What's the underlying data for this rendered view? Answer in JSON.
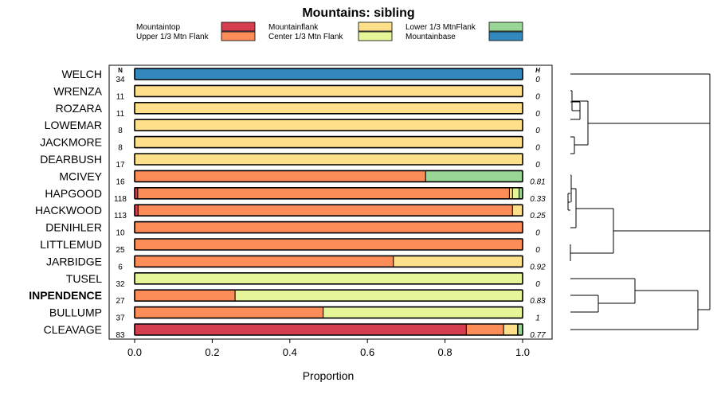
{
  "chart_data": {
    "type": "bar",
    "orientation": "horizontal",
    "stacked": true,
    "title": "Mountains: sibling",
    "xlabel": "Proportion",
    "ylabel": "",
    "xlim": [
      0,
      1
    ],
    "x_ticks": [
      0,
      0.2,
      0.4,
      0.6,
      0.8,
      1
    ],
    "x_tick_labels": [
      "0.0",
      "0.2",
      "0.4",
      "0.6",
      "0.8",
      "1.0"
    ],
    "n_header": "N",
    "h_header": "H",
    "legend": [
      {
        "name": "Mountaintop",
        "color": "#d53e4f"
      },
      {
        "name": "Upper 1/3 Mtn Flank",
        "color": "#fc8d59"
      },
      {
        "name": "Mountainflank",
        "color": "#fee08b"
      },
      {
        "name": "Center 1/3 Mtn Flank",
        "color": "#e6f598"
      },
      {
        "name": "Lower 1/3 MtnFlank",
        "color": "#99d594"
      },
      {
        "name": "Mountainbase",
        "color": "#3288bd"
      }
    ],
    "categories": [
      "WELCH",
      "WRENZA",
      "ROZARA",
      "LOWEMAR",
      "JACKMORE",
      "DEARBUSH",
      "MCIVEY",
      "HAPGOOD",
      "HACKWOOD",
      "DENIHLER",
      "LITTLEMUD",
      "JARBIDGE",
      "TUSEL",
      "INPENDENCE",
      "BULLUMP",
      "CLEAVAGE"
    ],
    "bold_categories": [
      "INPENDENCE"
    ],
    "n_values": [
      "34",
      "11",
      "11",
      "8",
      "8",
      "17",
      "16",
      "118",
      "113",
      "10",
      "25",
      "6",
      "32",
      "27",
      "37",
      "83"
    ],
    "h_values": [
      "0",
      "0",
      "0",
      "0",
      "0",
      "0",
      "0.81",
      "0.33",
      "0.25",
      "0",
      "0",
      "0.92",
      "0",
      "0.83",
      "1",
      "0.77"
    ],
    "series": [
      {
        "name": "Mountaintop",
        "values": [
          0,
          0,
          0,
          0,
          0,
          0,
          0,
          0.008,
          0.009,
          0,
          0,
          0,
          0,
          0,
          0,
          0.855
        ]
      },
      {
        "name": "Upper 1/3 Mtn Flank",
        "values": [
          0,
          0,
          0,
          0,
          0,
          0,
          0.75,
          0.958,
          0.965,
          1,
          1,
          0.667,
          0,
          0.259,
          0.486,
          0.096
        ]
      },
      {
        "name": "Mountainflank",
        "values": [
          0,
          1,
          1,
          1,
          1,
          1,
          0,
          0.008,
          0.026,
          0,
          0,
          0.333,
          0,
          0,
          0,
          0.036
        ]
      },
      {
        "name": "Center 1/3 Mtn Flank",
        "values": [
          0,
          0,
          0,
          0,
          0,
          0,
          0,
          0.017,
          0,
          0,
          0,
          0,
          1,
          0.741,
          0.514,
          0.001
        ]
      },
      {
        "name": "Lower 1/3 MtnFlank",
        "values": [
          0,
          0,
          0,
          0,
          0,
          0,
          0.25,
          0.009,
          0,
          0,
          0,
          0,
          0,
          0,
          0,
          0.012
        ]
      },
      {
        "name": "Mountainbase",
        "values": [
          1,
          0,
          0,
          0,
          0,
          0,
          0,
          0,
          0,
          0,
          0,
          0,
          0,
          0,
          0,
          0
        ]
      }
    ]
  }
}
